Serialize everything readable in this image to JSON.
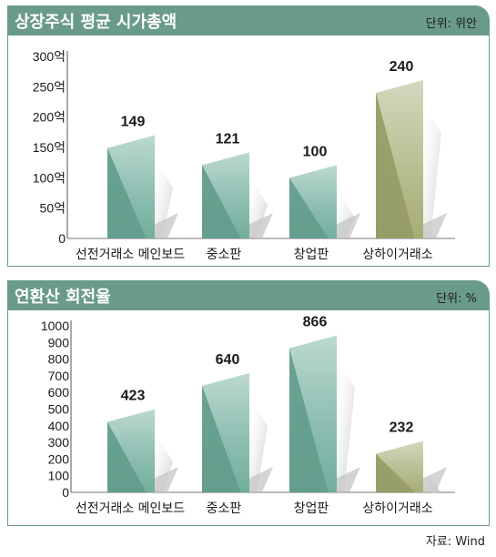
{
  "chart_data": [
    {
      "type": "bar",
      "title": "상장주식 평균 시가총액",
      "unit_label": "단위: 위안",
      "categories": [
        "선전거래소 메인보드",
        "중소판",
        "창업판",
        "상하이거래소"
      ],
      "values": [
        149,
        121,
        100,
        240
      ],
      "data_labels": [
        "149",
        "121",
        "100",
        "240"
      ],
      "yticks": [
        "0",
        "50억",
        "100억",
        "150억",
        "200억",
        "250억",
        "300억"
      ],
      "ylim": [
        0,
        300
      ],
      "bar_colors": [
        "#6aaa98",
        "#6aaa98",
        "#6aaa98",
        "#a2a86e"
      ],
      "grid": false
    },
    {
      "type": "bar",
      "title": "연환산 회전율",
      "unit_label": "단위: %",
      "categories": [
        "선전거래소 메인보드",
        "중소판",
        "창업판",
        "상하이거래소"
      ],
      "values": [
        423,
        640,
        866,
        232
      ],
      "data_labels": [
        "423",
        "640",
        "866",
        "232"
      ],
      "yticks": [
        "0",
        "100",
        "200",
        "300",
        "400",
        "500",
        "600",
        "700",
        "800",
        "900",
        "1000"
      ],
      "ylim": [
        0,
        1000
      ],
      "bar_colors": [
        "#6aaa98",
        "#6aaa98",
        "#6aaa98",
        "#a2a86e"
      ],
      "grid": false
    }
  ],
  "source": "자료: Wind"
}
